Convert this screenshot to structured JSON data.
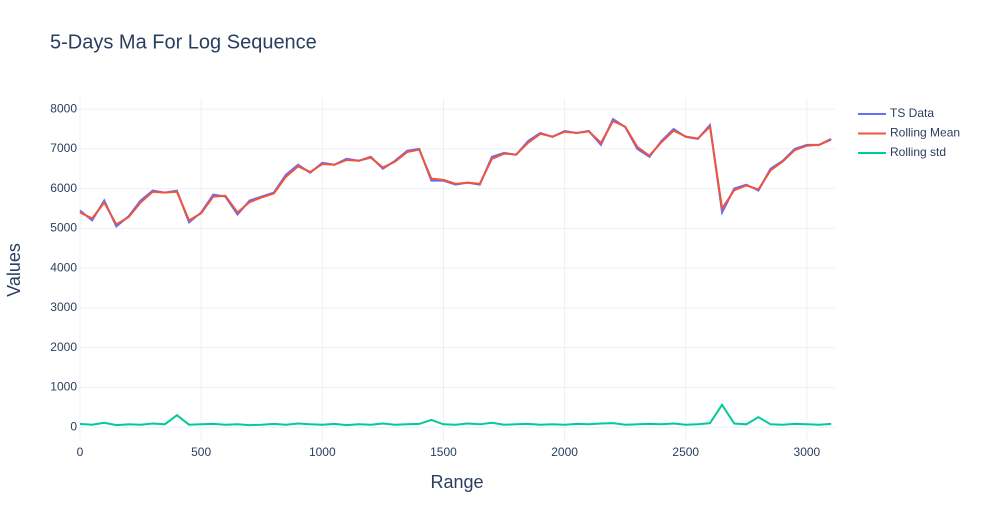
{
  "chart_data": {
    "type": "line",
    "title": "5-Days Ma For Log Sequence",
    "x_label": "Range",
    "y_label": "Values",
    "x": [
      0,
      50,
      100,
      150,
      200,
      250,
      300,
      350,
      400,
      450,
      500,
      550,
      600,
      650,
      700,
      750,
      800,
      850,
      900,
      950,
      1000,
      1050,
      1100,
      1150,
      1200,
      1250,
      1300,
      1350,
      1400,
      1450,
      1500,
      1550,
      1600,
      1650,
      1700,
      1750,
      1800,
      1850,
      1900,
      1950,
      2000,
      2050,
      2100,
      2150,
      2200,
      2250,
      2300,
      2350,
      2400,
      2450,
      2500,
      2550,
      2600,
      2650,
      2700,
      2750,
      2800,
      2850,
      2900,
      2950,
      3000,
      3050,
      3100
    ],
    "series": [
      {
        "name": "TS Data",
        "color": "#636efa",
        "values": [
          5450,
          5200,
          5700,
          5050,
          5300,
          5700,
          5950,
          5900,
          5950,
          5150,
          5400,
          5850,
          5800,
          5350,
          5700,
          5800,
          5900,
          6350,
          6600,
          6400,
          6650,
          6600,
          6750,
          6700,
          6800,
          6500,
          6700,
          6950,
          7000,
          6200,
          6200,
          6100,
          6150,
          6100,
          6800,
          6900,
          6850,
          7200,
          7400,
          7300,
          7450,
          7400,
          7450,
          7100,
          7750,
          7550,
          7000,
          6800,
          7200,
          7500,
          7300,
          7250,
          7600,
          5400,
          6000,
          6100,
          5950,
          6500,
          6700,
          7000,
          7100,
          7100,
          7250
        ]
      },
      {
        "name": "Rolling Mean",
        "color": "#EF553B",
        "values": [
          5400,
          5250,
          5650,
          5100,
          5280,
          5650,
          5920,
          5900,
          5920,
          5200,
          5380,
          5800,
          5820,
          5400,
          5660,
          5780,
          5880,
          6300,
          6560,
          6420,
          6620,
          6600,
          6720,
          6700,
          6780,
          6530,
          6680,
          6920,
          6980,
          6250,
          6220,
          6120,
          6150,
          6120,
          6750,
          6880,
          6860,
          7160,
          7380,
          7310,
          7430,
          7400,
          7440,
          7150,
          7700,
          7560,
          7050,
          6830,
          7170,
          7460,
          7310,
          7260,
          7560,
          5500,
          5960,
          6080,
          5980,
          6460,
          6680,
          6970,
          7080,
          7100,
          7230
        ]
      },
      {
        "name": "Rolling std",
        "color": "#00cc96",
        "values": [
          80,
          60,
          110,
          50,
          70,
          60,
          90,
          70,
          300,
          60,
          70,
          80,
          60,
          70,
          50,
          60,
          80,
          60,
          90,
          70,
          60,
          80,
          50,
          70,
          60,
          90,
          60,
          70,
          80,
          180,
          70,
          60,
          90,
          70,
          110,
          60,
          70,
          80,
          60,
          70,
          60,
          80,
          70,
          90,
          100,
          60,
          70,
          80,
          70,
          90,
          60,
          70,
          100,
          560,
          90,
          70,
          250,
          70,
          60,
          80,
          70,
          60,
          80
        ]
      }
    ],
    "xlim": [
      0,
      3116
    ],
    "ylim": [
      -350,
      8280
    ],
    "xticks": [
      0,
      500,
      1000,
      1500,
      2000,
      2500,
      3000
    ],
    "yticks": [
      0,
      1000,
      2000,
      3000,
      4000,
      5000,
      6000,
      7000,
      8000
    ],
    "grid": true
  }
}
